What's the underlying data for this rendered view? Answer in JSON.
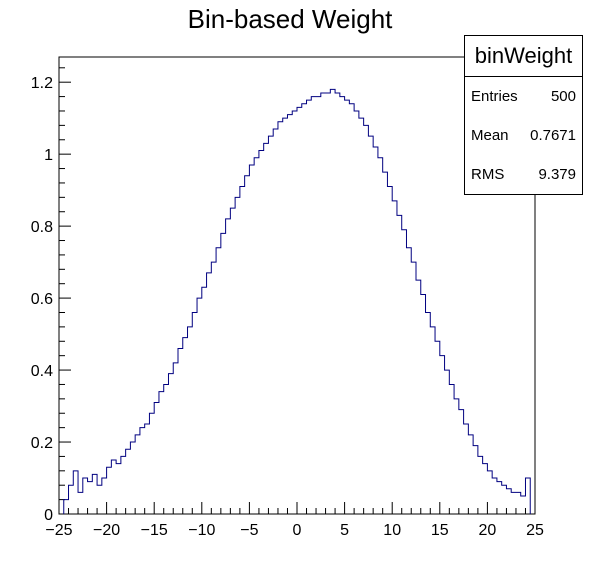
{
  "chart_data": {
    "type": "histogram",
    "title": "Bin-based Weight",
    "xlabel": "",
    "ylabel": "",
    "xlim": [
      -25,
      25
    ],
    "ylim": [
      0,
      1.27
    ],
    "x_ticks": [
      -25,
      -20,
      -15,
      -10,
      -5,
      0,
      5,
      10,
      15,
      20,
      25
    ],
    "y_ticks": [
      0,
      0.2,
      0.4,
      0.6,
      0.8,
      1,
      1.2
    ],
    "x_tick_labels": [
      "−25",
      "−20",
      "−15",
      "−10",
      "−5",
      "0",
      "5",
      "10",
      "15",
      "20",
      "25"
    ],
    "y_tick_labels": [
      "0",
      "0.2",
      "0.4",
      "0.6",
      "0.8",
      "1",
      "1.2"
    ],
    "bin_width": 0.5,
    "bins_from": -24.5,
    "values": [
      0.04,
      0.08,
      0.12,
      0.06,
      0.1,
      0.09,
      0.11,
      0.08,
      0.1,
      0.13,
      0.15,
      0.14,
      0.16,
      0.18,
      0.2,
      0.22,
      0.24,
      0.25,
      0.28,
      0.31,
      0.34,
      0.36,
      0.39,
      0.42,
      0.46,
      0.49,
      0.52,
      0.56,
      0.6,
      0.63,
      0.67,
      0.7,
      0.74,
      0.78,
      0.82,
      0.85,
      0.88,
      0.91,
      0.94,
      0.97,
      0.99,
      1.01,
      1.03,
      1.05,
      1.07,
      1.09,
      1.1,
      1.11,
      1.12,
      1.13,
      1.14,
      1.15,
      1.16,
      1.16,
      1.17,
      1.17,
      1.18,
      1.17,
      1.16,
      1.15,
      1.14,
      1.12,
      1.1,
      1.08,
      1.05,
      1.02,
      0.99,
      0.95,
      0.91,
      0.87,
      0.83,
      0.79,
      0.74,
      0.7,
      0.65,
      0.61,
      0.56,
      0.52,
      0.48,
      0.44,
      0.4,
      0.36,
      0.32,
      0.29,
      0.25,
      0.22,
      0.19,
      0.16,
      0.14,
      0.12,
      0.1,
      0.09,
      0.08,
      0.07,
      0.06,
      0.06,
      0.05,
      0.1
    ],
    "line_color": "#000080",
    "grid": false,
    "legend": "top-right"
  },
  "stats": {
    "name": "binWeight",
    "rows": [
      {
        "label": "Entries",
        "value": "500"
      },
      {
        "label": "Mean",
        "value": "0.7671"
      },
      {
        "label": "RMS",
        "value": "9.379"
      }
    ]
  }
}
